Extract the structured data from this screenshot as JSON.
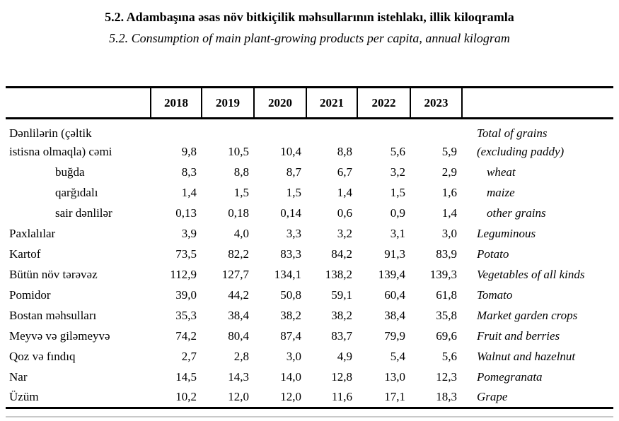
{
  "page": {
    "title_az": "5.2. Adambaşına əsas növ bitkiçilik məhsullarının istehlakı, illik kiloqramla",
    "title_en": "5.2. Consumption of main plant-growing products per capita, annual kilogram"
  },
  "table": {
    "years": [
      "2018",
      "2019",
      "2020",
      "2021",
      "2022",
      "2023"
    ],
    "rows": [
      {
        "az": "Dənlilərin (çəltik",
        "az_indent": false,
        "values": null,
        "en": "Total of grains",
        "en_indent": false
      },
      {
        "az": "istisna olmaqla) cəmi",
        "az_indent": false,
        "values": [
          "9,8",
          "10,5",
          "10,4",
          "8,8",
          "5,6",
          "5,9"
        ],
        "en": "(excluding paddy)",
        "en_indent": false
      },
      {
        "az": "buğda",
        "az_indent": true,
        "values": [
          "8,3",
          "8,8",
          "8,7",
          "6,7",
          "3,2",
          "2,9"
        ],
        "en": "wheat",
        "en_indent": true
      },
      {
        "az": "qarğıdalı",
        "az_indent": true,
        "values": [
          "1,4",
          "1,5",
          "1,5",
          "1,4",
          "1,5",
          "1,6"
        ],
        "en": "maize",
        "en_indent": true
      },
      {
        "az": "sair dənlilər",
        "az_indent": true,
        "values": [
          "0,13",
          "0,18",
          "0,14",
          "0,6",
          "0,9",
          "1,4"
        ],
        "en": "other grains",
        "en_indent": true
      },
      {
        "az": "Paxlalılar",
        "az_indent": false,
        "values": [
          "3,9",
          "4,0",
          "3,3",
          "3,2",
          "3,1",
          "3,0"
        ],
        "en": "Leguminous",
        "en_indent": false
      },
      {
        "az": "Kartof",
        "az_indent": false,
        "values": [
          "73,5",
          "82,2",
          "83,3",
          "84,2",
          "91,3",
          "83,9"
        ],
        "en": "Potato",
        "en_indent": false
      },
      {
        "az": "Bütün növ tərəvəz",
        "az_indent": false,
        "values": [
          "112,9",
          "127,7",
          "134,1",
          "138,2",
          "139,4",
          "139,3"
        ],
        "en": "Vegetables of all kinds",
        "en_indent": false
      },
      {
        "az": "Pomidor",
        "az_indent": false,
        "values": [
          "39,0",
          "44,2",
          "50,8",
          "59,1",
          "60,4",
          "61,8"
        ],
        "en": "Tomato",
        "en_indent": false
      },
      {
        "az": "Bostan məhsulları",
        "az_indent": false,
        "values": [
          "35,3",
          "38,4",
          "38,2",
          "38,2",
          "38,4",
          "35,8"
        ],
        "en": "Market garden crops",
        "en_indent": false
      },
      {
        "az": "Meyvə və giləmeyvə",
        "az_indent": false,
        "values": [
          "74,2",
          "80,4",
          "87,4",
          "83,7",
          "79,9",
          "69,6"
        ],
        "en": "Fruit and berries",
        "en_indent": false
      },
      {
        "az": "Qoz və fındıq",
        "az_indent": false,
        "values": [
          "2,7",
          "2,8",
          "3,0",
          "4,9",
          "5,4",
          "5,6"
        ],
        "en": "Walnut and hazelnut",
        "en_indent": false
      },
      {
        "az": "Nar",
        "az_indent": false,
        "values": [
          "14,5",
          "14,3",
          "14,0",
          "12,8",
          "13,0",
          "12,3"
        ],
        "en": "Pomegranata",
        "en_indent": false
      },
      {
        "az": "Üzüm",
        "az_indent": false,
        "values": [
          "10,2",
          "12,0",
          "12,0",
          "11,6",
          "17,1",
          "18,3"
        ],
        "en": "Grape",
        "en_indent": false
      }
    ]
  },
  "colors": {
    "text": "#000000",
    "rule": "#000000",
    "light_rule": "#c9c9c9",
    "background": "#ffffff"
  }
}
